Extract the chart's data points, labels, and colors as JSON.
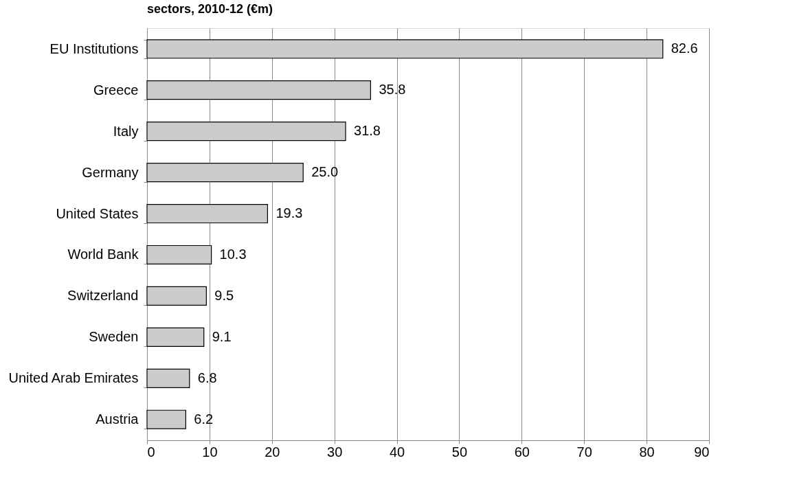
{
  "chart_data": {
    "type": "bar",
    "orientation": "horizontal",
    "title": "sectors, 2010-12 (€m)",
    "categories": [
      "EU Institutions",
      "Greece",
      "Italy",
      "Germany",
      "United States",
      "World Bank",
      "Switzerland",
      "Sweden",
      "United Arab Emirates",
      "Austria"
    ],
    "values": [
      82.6,
      35.8,
      31.8,
      25.0,
      19.3,
      10.3,
      9.5,
      9.1,
      6.8,
      6.2
    ],
    "value_labels": [
      "82.6",
      "35.8",
      "31.8",
      "25.0",
      "19.3",
      "10.3",
      "9.5",
      "9.1",
      "6.8",
      "6.2"
    ],
    "color": "#cccccc",
    "xlim": [
      0,
      90
    ],
    "xticks": [
      0,
      10,
      20,
      30,
      40,
      50,
      60,
      70,
      80,
      90
    ],
    "grid": "x"
  }
}
